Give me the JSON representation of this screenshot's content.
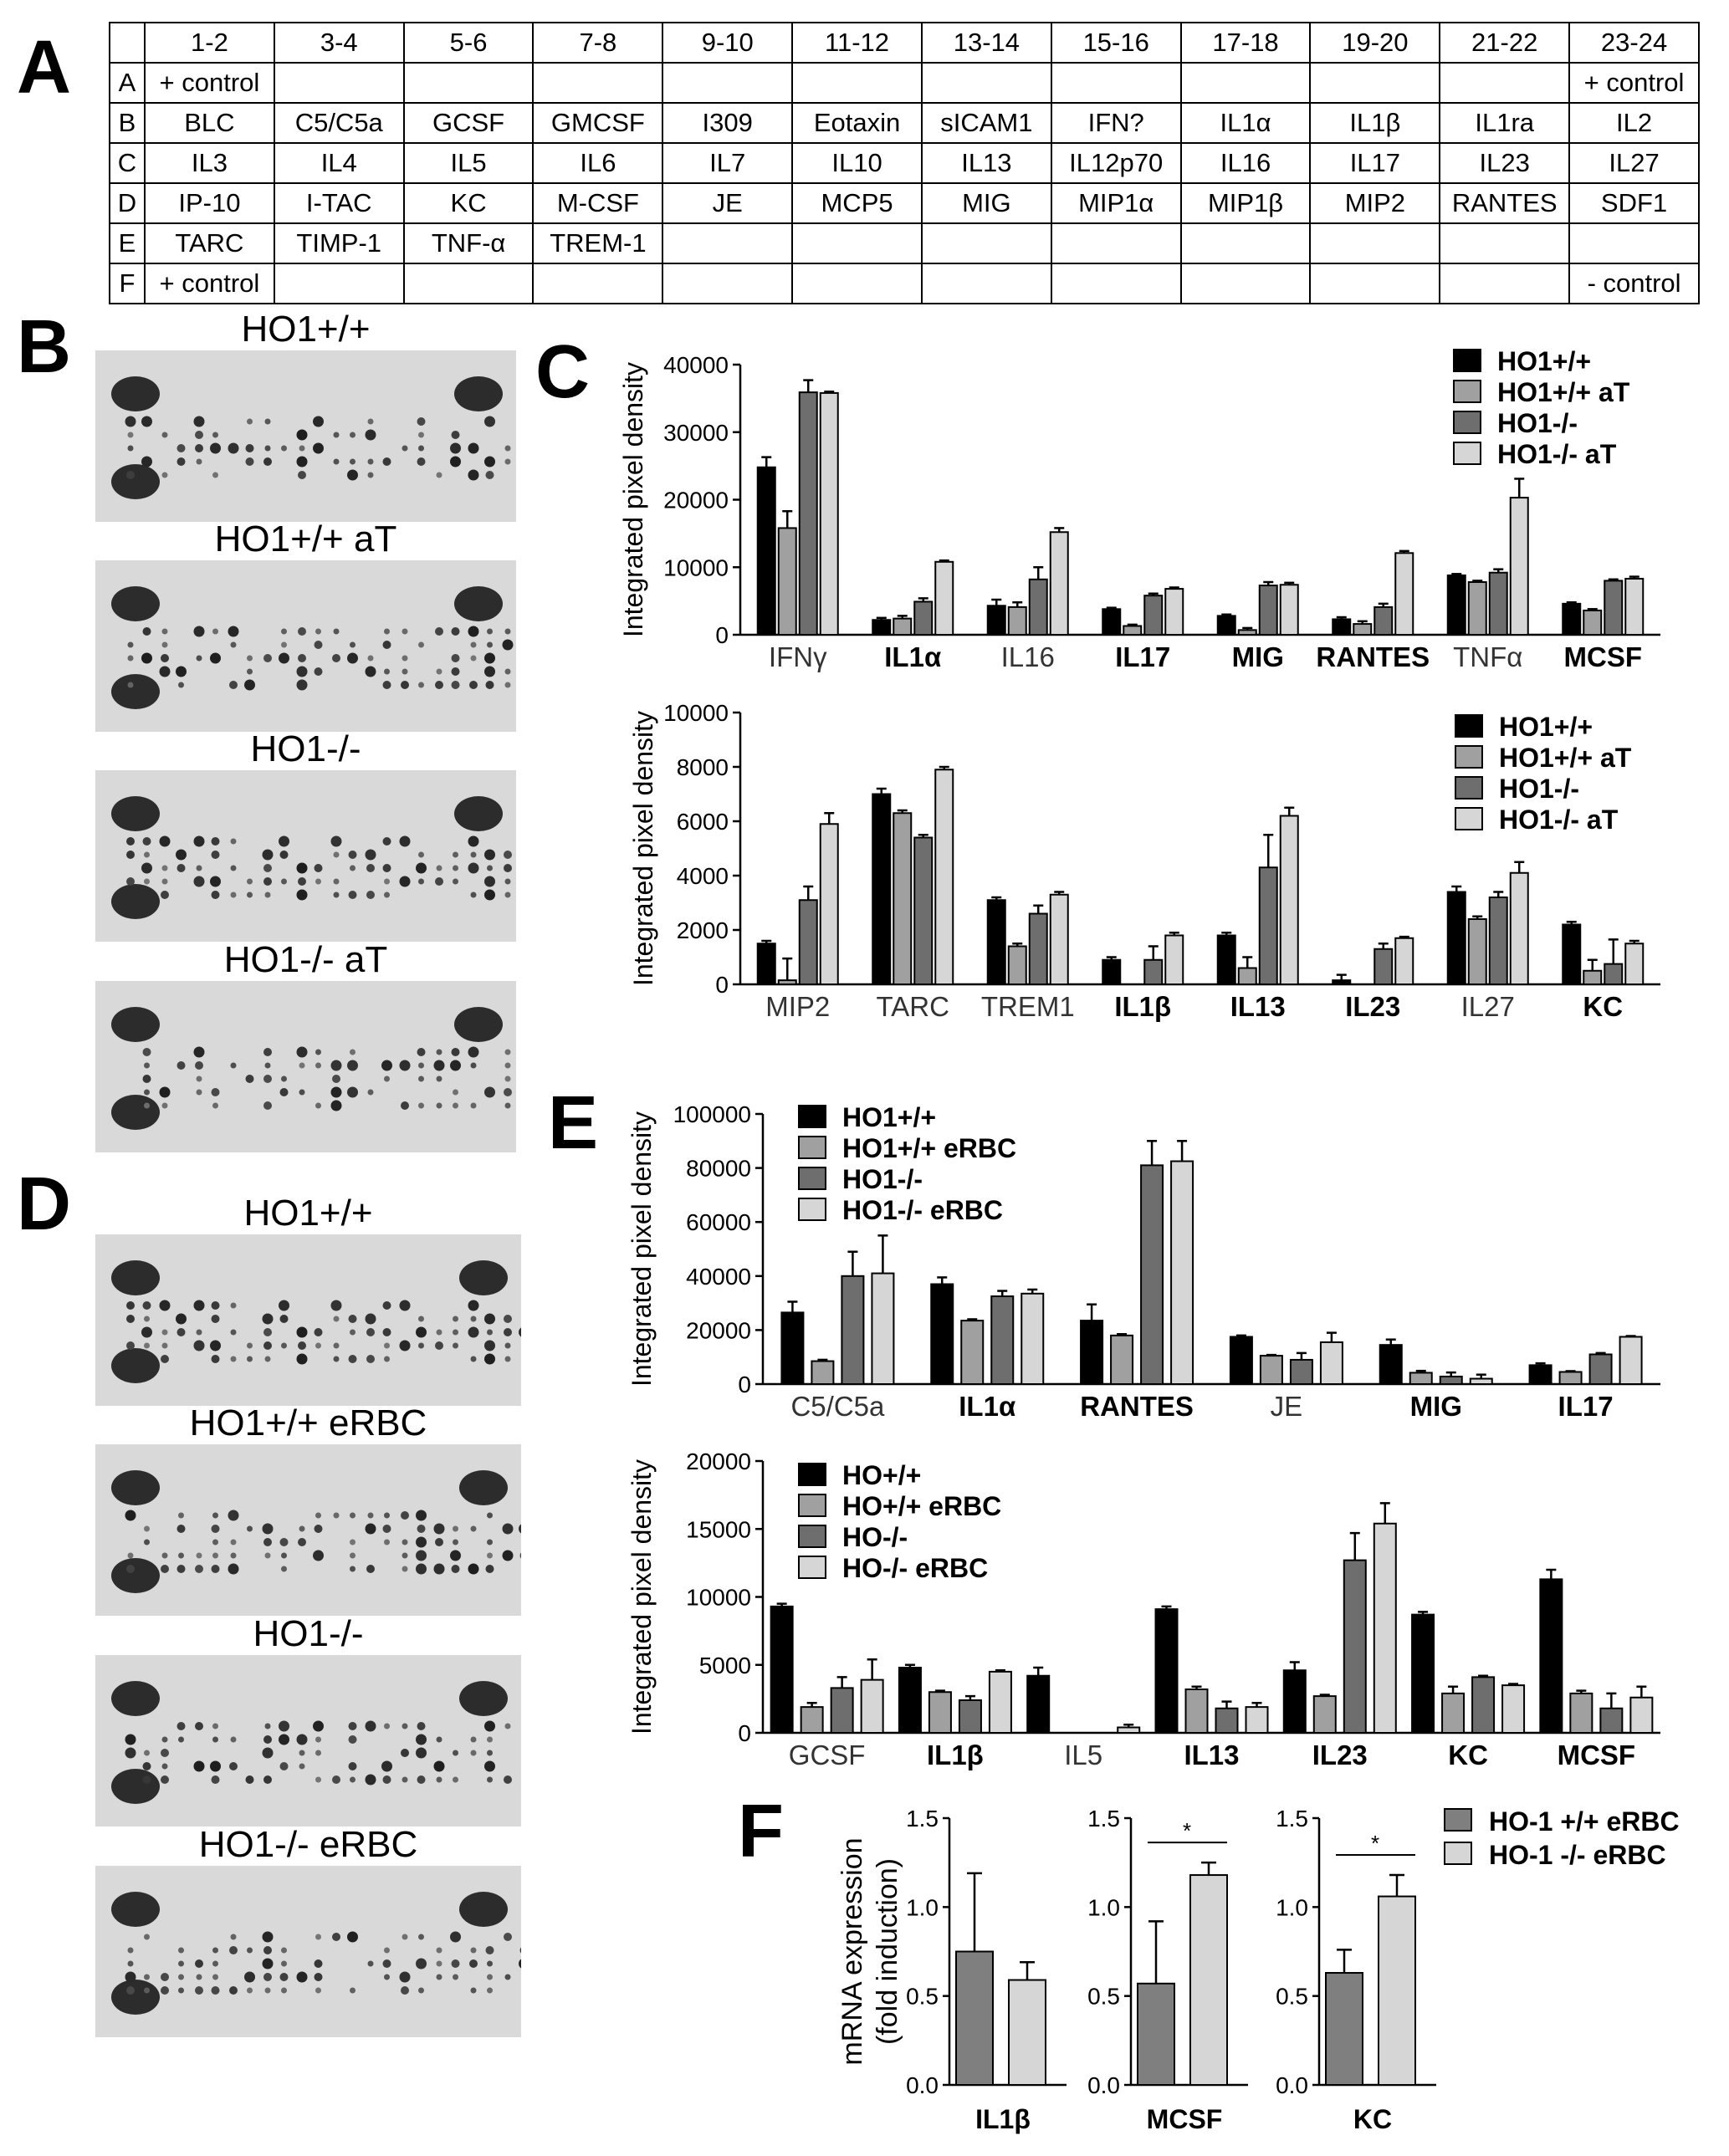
{
  "panel_labels": {
    "a": "A",
    "b": "B",
    "c": "C",
    "d": "D",
    "e": "E",
    "f": "F"
  },
  "table_a": {
    "header": [
      "",
      "1-2",
      "3-4",
      "5-6",
      "7-8",
      "9-10",
      "11-12",
      "13-14",
      "15-16",
      "17-18",
      "19-20",
      "21-22",
      "23-24"
    ],
    "rows": [
      [
        "A",
        "+ control",
        "",
        "",
        "",
        "",
        "",
        "",
        "",
        "",
        "",
        "",
        "+ control"
      ],
      [
        "B",
        "BLC",
        "C5/C5a",
        "GCSF",
        "GMCSF",
        "I309",
        "Eotaxin",
        "sICAM1",
        "IFN?",
        "IL1α",
        "IL1β",
        "IL1ra",
        "IL2"
      ],
      [
        "C",
        "IL3",
        "IL4",
        "IL5",
        "IL6",
        "IL7",
        "IL10",
        "IL13",
        "IL12p70",
        "IL16",
        "IL17",
        "IL23",
        "IL27"
      ],
      [
        "D",
        "IP-10",
        "I-TAC",
        "KC",
        "M-CSF",
        "JE",
        "MCP5",
        "MIG",
        "MIP1α",
        "MIP1β",
        "MIP2",
        "RANTES",
        "SDF1"
      ],
      [
        "E",
        "TARC",
        "TIMP-1",
        "TNF-α",
        "TREM-1",
        "",
        "",
        "",
        "",
        "",
        "",
        "",
        ""
      ],
      [
        "F",
        "+ control",
        "",
        "",
        "",
        "",
        "",
        "",
        "",
        "",
        "",
        "",
        "- control"
      ]
    ]
  },
  "blots_b": [
    {
      "title": "HO1+/+"
    },
    {
      "title": "HO1+/+ aT"
    },
    {
      "title": "HO1-/-"
    },
    {
      "title": "HO1-/- aT"
    }
  ],
  "blots_d": [
    {
      "title": "HO1+/+"
    },
    {
      "title": "HO1+/+ eRBC"
    },
    {
      "title": "HO1-/-"
    },
    {
      "title": "HO1-/- eRBC"
    }
  ],
  "colors": {
    "s1": "#000000",
    "s2": "#a0a0a0",
    "s3": "#6e6e6e",
    "s4": "#d6d6d6",
    "f1": "#7f7f7f",
    "f2": "#d6d6d6"
  },
  "chart_data": [
    {
      "id": "C1",
      "type": "bar",
      "ylabel": "Integrated pixel density",
      "ylim": [
        0,
        40000
      ],
      "yticks": [
        0,
        10000,
        20000,
        30000,
        40000
      ],
      "categories": [
        "IFNγ",
        "IL1α",
        "IL16",
        "IL17",
        "MIG",
        "RANTES",
        "TNFα",
        "MCSF"
      ],
      "bold_categories": [
        "IL1α",
        "IL17",
        "MIG",
        "RANTES",
        "MCSF"
      ],
      "legend": [
        "HO1+/+",
        "HO1+/+ aT",
        "HO1-/-",
        "HO1-/- aT"
      ],
      "series": [
        {
          "name": "HO1+/+",
          "values": [
            24800,
            2200,
            4300,
            3800,
            2800,
            2300,
            8800,
            4600
          ],
          "errors": [
            1500,
            300,
            900,
            200,
            200,
            300,
            200,
            200
          ]
        },
        {
          "name": "HO1+/+ aT",
          "values": [
            15800,
            2400,
            4100,
            1300,
            700,
            1600,
            7800,
            3600
          ],
          "errors": [
            2500,
            400,
            700,
            200,
            300,
            400,
            200,
            200
          ]
        },
        {
          "name": "HO1-/-",
          "values": [
            35900,
            4900,
            8200,
            5800,
            7300,
            4100,
            9200,
            8000
          ],
          "errors": [
            1800,
            500,
            1800,
            300,
            500,
            500,
            500,
            200
          ]
        },
        {
          "name": "HO1-/- aT",
          "values": [
            35800,
            10800,
            15200,
            6800,
            7400,
            12100,
            20300,
            8300
          ],
          "errors": [
            200,
            200,
            600,
            200,
            300,
            300,
            2800,
            300
          ]
        }
      ]
    },
    {
      "id": "C2",
      "type": "bar",
      "ylabel": "Integrated pixel density",
      "ylim": [
        0,
        10000
      ],
      "yticks": [
        0,
        2000,
        4000,
        6000,
        8000,
        10000
      ],
      "categories": [
        "MIP2",
        "TARC",
        "TREM1",
        "IL1β",
        "IL13",
        "IL23",
        "IL27",
        "KC"
      ],
      "bold_categories": [
        "IL1β",
        "IL13",
        "IL23",
        "KC"
      ],
      "legend": [
        "HO1+/+",
        "HO1+/+ aT",
        "HO1-/-",
        "HO1-/- aT"
      ],
      "series": [
        {
          "name": "HO1+/+",
          "values": [
            1500,
            7000,
            3100,
            900,
            1800,
            150,
            3400,
            2200
          ],
          "errors": [
            100,
            200,
            100,
            100,
            100,
            200,
            200,
            100
          ]
        },
        {
          "name": "HO1+/+ aT",
          "values": [
            150,
            6300,
            1400,
            0,
            600,
            0,
            2400,
            500
          ],
          "errors": [
            800,
            100,
            100,
            0,
            400,
            0,
            100,
            400
          ]
        },
        {
          "name": "HO1-/-",
          "values": [
            3100,
            5400,
            2600,
            900,
            4300,
            1300,
            3200,
            750
          ],
          "errors": [
            500,
            100,
            300,
            500,
            1200,
            200,
            200,
            900
          ]
        },
        {
          "name": "HO1-/- aT",
          "values": [
            5900,
            7900,
            3300,
            1800,
            6200,
            1700,
            4100,
            1500
          ],
          "errors": [
            400,
            100,
            100,
            100,
            300,
            50,
            400,
            100
          ]
        }
      ]
    },
    {
      "id": "E1",
      "type": "bar",
      "ylabel": "Integrated pixel density",
      "ylim": [
        0,
        100000
      ],
      "yticks": [
        0,
        20000,
        40000,
        60000,
        80000,
        100000
      ],
      "categories": [
        "C5/C5a",
        "IL1α",
        "RANTES",
        "JE",
        "MIG",
        "IL17"
      ],
      "bold_categories": [
        "IL1α",
        "RANTES",
        "MIG",
        "IL17"
      ],
      "legend": [
        "HO1+/+",
        "HO1+/+ eRBC",
        "HO1-/-",
        "HO1-/- eRBC"
      ],
      "series": [
        {
          "name": "HO1+/+",
          "values": [
            26500,
            37000,
            23500,
            17500,
            14500,
            7000
          ],
          "errors": [
            4000,
            2500,
            6000,
            500,
            2000,
            700
          ]
        },
        {
          "name": "HO1+/+ eRBC",
          "values": [
            8500,
            23500,
            18000,
            10500,
            4200,
            4500
          ],
          "errors": [
            500,
            500,
            500,
            300,
            700,
            300
          ]
        },
        {
          "name": "HO1-/-",
          "values": [
            40000,
            32500,
            81000,
            9000,
            2800,
            11000
          ],
          "errors": [
            9000,
            2000,
            9000,
            2500,
            1500,
            500
          ]
        },
        {
          "name": "HO1-/- eRBC",
          "values": [
            41000,
            33500,
            82500,
            15500,
            2000,
            17500
          ],
          "errors": [
            14000,
            1500,
            7500,
            3500,
            1500,
            300
          ]
        }
      ]
    },
    {
      "id": "E2",
      "type": "bar",
      "ylabel": "Integrated pixel density",
      "ylim": [
        0,
        20000
      ],
      "yticks": [
        0,
        5000,
        10000,
        15000,
        20000
      ],
      "categories": [
        "GCSF",
        "IL1β",
        "IL5",
        "IL13",
        "IL23",
        "KC",
        "MCSF"
      ],
      "bold_categories": [
        "IL1β",
        "IL13",
        "IL23",
        "KC",
        "MCSF"
      ],
      "legend": [
        "HO+/+",
        "HO+/+ eRBC",
        "HO-/-",
        "HO-/- eRBC"
      ],
      "series": [
        {
          "name": "HO+/+",
          "values": [
            9300,
            4800,
            4200,
            9100,
            4600,
            8700,
            11300
          ],
          "errors": [
            200,
            200,
            600,
            200,
            600,
            200,
            700
          ]
        },
        {
          "name": "HO+/+ eRBC",
          "values": [
            1900,
            3000,
            0,
            3200,
            2700,
            2900,
            2900
          ],
          "errors": [
            300,
            100,
            0,
            200,
            100,
            500,
            200
          ]
        },
        {
          "name": "HO-/-",
          "values": [
            3300,
            2400,
            0,
            1800,
            12700,
            4100,
            1800
          ],
          "errors": [
            800,
            300,
            0,
            500,
            2000,
            100,
            1100
          ]
        },
        {
          "name": "HO-/- eRBC",
          "values": [
            3900,
            4500,
            400,
            1900,
            15400,
            3500,
            2600
          ],
          "errors": [
            1500,
            100,
            200,
            300,
            1500,
            100,
            800
          ]
        }
      ]
    },
    {
      "id": "F",
      "type": "bar",
      "ylabel": "mRNA expression (fold induction)",
      "ylim": [
        0,
        1.5
      ],
      "yticks": [
        "0.0",
        "0.5",
        "1.0",
        "1.5"
      ],
      "legend": [
        "HO-1 +/+ eRBC",
        "HO-1 -/- eRBC"
      ],
      "subplots": [
        {
          "gene": "IL1β",
          "values": [
            0.75,
            0.59
          ],
          "errors": [
            0.44,
            0.1
          ],
          "significance": ""
        },
        {
          "gene": "MCSF",
          "values": [
            0.57,
            1.18
          ],
          "errors": [
            0.35,
            0.07
          ],
          "significance": "*"
        },
        {
          "gene": "KC",
          "values": [
            0.63,
            1.06
          ],
          "errors": [
            0.13,
            0.12
          ],
          "significance": "*"
        }
      ]
    }
  ]
}
